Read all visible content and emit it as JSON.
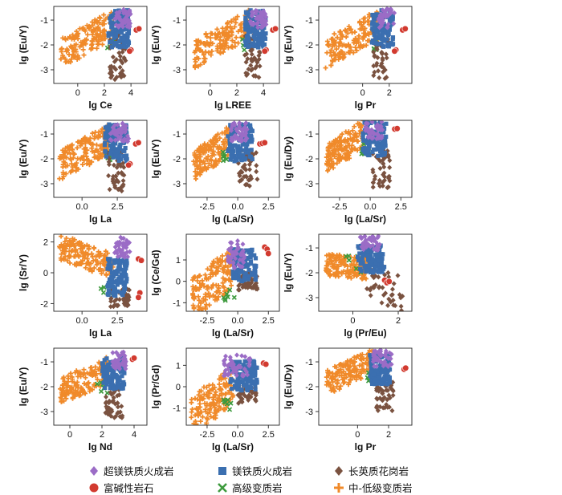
{
  "chart_data": [
    {
      "type": "scatter",
      "xlabel": "lg Ce",
      "ylabel": "lg (Eu/Y)",
      "xticks": [
        "0",
        "2",
        "4"
      ],
      "xtick_values": [
        0,
        2,
        4
      ],
      "yticks": [
        "-1",
        "-2",
        "-3"
      ],
      "ytick_values": [
        -1,
        -2,
        -3
      ],
      "xlim": [
        -1.8,
        5.2
      ],
      "ylim": [
        -3.55,
        -0.45
      ],
      "clusters": {
        "orange": {
          "x": [
            -1.3,
            2.8
          ],
          "y": [
            -2.35,
            -1.15
          ],
          "slope": 0.3
        },
        "blue": {
          "x": [
            2.3,
            3.9
          ],
          "y": [
            -2.1,
            -0.6
          ]
        },
        "purple": {
          "x": [
            2.8,
            4.0
          ],
          "y": [
            -1.3,
            -0.55
          ]
        },
        "brown": {
          "x": [
            2.4,
            3.6
          ],
          "y": [
            -3.4,
            -1.5
          ]
        },
        "green": {
          "x": [
            2.2,
            2.9
          ],
          "y": [
            -2.2,
            -1.7
          ]
        },
        "red": [
          [
            4.4,
            -1.4
          ],
          [
            4.6,
            -1.35
          ],
          [
            4.0,
            -2.2
          ],
          [
            3.9,
            -2.25
          ]
        ]
      }
    },
    {
      "type": "scatter",
      "xlabel": "lg LREE",
      "ylabel": "lg (Eu/Y)",
      "xticks": [
        "0",
        "2",
        "4"
      ],
      "xtick_values": [
        0,
        2,
        4
      ],
      "yticks": [
        "-1",
        "-2",
        "-3"
      ],
      "ytick_values": [
        -1,
        -2,
        -3
      ],
      "xlim": [
        -1.8,
        5.2
      ],
      "ylim": [
        -3.55,
        -0.45
      ],
      "clusters": {
        "orange": {
          "x": [
            -1.2,
            3.0
          ],
          "y": [
            -2.35,
            -1.15
          ],
          "slope": 0.3
        },
        "blue": {
          "x": [
            2.6,
            4.2
          ],
          "y": [
            -2.1,
            -0.6
          ]
        },
        "purple": {
          "x": [
            3.0,
            4.2
          ],
          "y": [
            -1.3,
            -0.55
          ]
        },
        "brown": {
          "x": [
            2.6,
            3.8
          ],
          "y": [
            -3.4,
            -1.5
          ]
        },
        "green": {
          "x": [
            2.4,
            3.1
          ],
          "y": [
            -2.2,
            -1.7
          ]
        },
        "red": [
          [
            4.7,
            -1.4
          ],
          [
            4.9,
            -1.35
          ],
          [
            4.2,
            -2.2
          ],
          [
            4.1,
            -2.25
          ]
        ]
      }
    },
    {
      "type": "scatter",
      "xlabel": "lg Pr",
      "ylabel": "lg (Eu/Y)",
      "xticks": [
        "0",
        "2"
      ],
      "xtick_values": [
        0,
        2
      ],
      "yticks": [
        "-1",
        "-2",
        "-3"
      ],
      "ytick_values": [
        -1,
        -2,
        -3
      ],
      "xlim": [
        -3.3,
        3.7
      ],
      "ylim": [
        -3.55,
        -0.45
      ],
      "clusters": {
        "orange": {
          "x": [
            -2.8,
            1.2
          ],
          "y": [
            -2.35,
            -1.15
          ],
          "slope": 0.3
        },
        "blue": {
          "x": [
            0.7,
            2.3
          ],
          "y": [
            -2.1,
            -0.6
          ]
        },
        "purple": {
          "x": [
            1.2,
            2.4
          ],
          "y": [
            -1.3,
            -0.55
          ]
        },
        "brown": {
          "x": [
            0.8,
            2.0
          ],
          "y": [
            -3.4,
            -1.5
          ]
        },
        "green": {
          "x": [
            0.6,
            1.3
          ],
          "y": [
            -2.2,
            -1.7
          ]
        },
        "red": [
          [
            3.0,
            -1.4
          ],
          [
            3.2,
            -1.35
          ],
          [
            2.5,
            -2.2
          ],
          [
            2.4,
            -2.25
          ]
        ]
      }
    },
    {
      "type": "scatter",
      "xlabel": "lg La",
      "ylabel": "lg (Eu/Y)",
      "xticks": [
        "0.0",
        "2.5"
      ],
      "xtick_values": [
        0,
        2.5
      ],
      "yticks": [
        "-1",
        "-2",
        "-3"
      ],
      "ytick_values": [
        -1,
        -2,
        -3
      ],
      "xlim": [
        -2.0,
        4.6
      ],
      "ylim": [
        -3.55,
        -0.45
      ],
      "clusters": {
        "orange": {
          "x": [
            -1.6,
            1.9
          ],
          "y": [
            -2.35,
            -1.15
          ],
          "slope": 0.3
        },
        "blue": {
          "x": [
            1.6,
            3.2
          ],
          "y": [
            -2.1,
            -0.6
          ]
        },
        "purple": {
          "x": [
            2.0,
            3.3
          ],
          "y": [
            -1.3,
            -0.55
          ]
        },
        "brown": {
          "x": [
            1.8,
            3.0
          ],
          "y": [
            -3.4,
            -1.5
          ]
        },
        "green": {
          "x": [
            1.4,
            2.1
          ],
          "y": [
            -2.2,
            -1.7
          ]
        },
        "red": [
          [
            3.8,
            -1.4
          ],
          [
            4.0,
            -1.35
          ],
          [
            3.4,
            -2.2
          ],
          [
            3.3,
            -2.25
          ]
        ]
      }
    },
    {
      "type": "scatter",
      "xlabel": "lg (La/Sr)",
      "ylabel": "lg (Eu/Y)",
      "xticks": [
        "-2.5",
        "0.0",
        "2.5"
      ],
      "xtick_values": [
        -2.5,
        0,
        2.5
      ],
      "yticks": [
        "-1",
        "-2",
        "-3"
      ],
      "ytick_values": [
        -1,
        -2,
        -3
      ],
      "xlim": [
        -4.2,
        3.4
      ],
      "ylim": [
        -3.55,
        -0.45
      ],
      "clusters": {
        "orange": {
          "x": [
            -3.6,
            -0.5
          ],
          "y": [
            -2.35,
            -1.15
          ],
          "slope": 0.35
        },
        "blue": {
          "x": [
            -0.8,
            1.2
          ],
          "y": [
            -2.1,
            -0.6
          ]
        },
        "purple": {
          "x": [
            -0.6,
            0.8
          ],
          "y": [
            -1.3,
            -0.55
          ]
        },
        "brown": {
          "x": [
            0.0,
            1.6
          ],
          "y": [
            -3.1,
            -1.6
          ]
        },
        "green": {
          "x": [
            -1.3,
            -0.5
          ],
          "y": [
            -2.2,
            -1.7
          ]
        },
        "red": [
          [
            1.8,
            -1.4
          ],
          [
            2.0,
            -1.38
          ],
          [
            2.2,
            -1.35
          ]
        ]
      }
    },
    {
      "type": "scatter",
      "xlabel": "lg (La/Sr)",
      "ylabel": "lg (Eu/Dy)",
      "xticks": [
        "-2.5",
        "0.0",
        "2.5"
      ],
      "xtick_values": [
        -2.5,
        0,
        2.5
      ],
      "yticks": [
        "-1",
        "-2",
        "-3"
      ],
      "ytick_values": [
        -1,
        -2,
        -3
      ],
      "xlim": [
        -4.2,
        3.4
      ],
      "ylim": [
        -3.55,
        -0.45
      ],
      "clusters": {
        "orange": {
          "x": [
            -3.6,
            -0.5
          ],
          "y": [
            -2.1,
            -0.9
          ],
          "slope": 0.35
        },
        "blue": {
          "x": [
            -0.6,
            1.3
          ],
          "y": [
            -1.9,
            -0.5
          ]
        },
        "purple": {
          "x": [
            -0.4,
            1.0
          ],
          "y": [
            -1.2,
            -0.5
          ]
        },
        "brown": {
          "x": [
            0.2,
            1.6
          ],
          "y": [
            -3.2,
            -1.6
          ]
        },
        "green": {
          "x": [
            -0.8,
            0.2
          ],
          "y": [
            -1.8,
            -1.4
          ]
        },
        "red": [
          [
            2.0,
            -0.8
          ],
          [
            2.2,
            -0.78
          ]
        ]
      }
    },
    {
      "type": "scatter",
      "xlabel": "lg La",
      "ylabel": "lg (Sr/Y)",
      "xticks": [
        "0.0",
        "2.5"
      ],
      "xtick_values": [
        0,
        2.5
      ],
      "yticks": [
        "2",
        "0",
        "-2"
      ],
      "ytick_values": [
        2,
        0,
        -2
      ],
      "xlim": [
        -2.0,
        4.6
      ],
      "ylim": [
        -2.5,
        2.5
      ],
      "clusters": {
        "orange": {
          "x": [
            -1.6,
            2.2
          ],
          "y": [
            0.2,
            1.9
          ],
          "slope": -0.35
        },
        "blue": {
          "x": [
            1.8,
            3.2
          ],
          "y": [
            -1.5,
            0.9
          ]
        },
        "purple": {
          "x": [
            2.3,
            3.4
          ],
          "y": [
            1.0,
            2.3
          ]
        },
        "brown": {
          "x": [
            2.0,
            3.4
          ],
          "y": [
            -2.2,
            -1.0
          ]
        },
        "green": {
          "x": [
            1.3,
            2.2
          ],
          "y": [
            -1.4,
            -0.6
          ]
        },
        "red": [
          [
            4.0,
            0.9
          ],
          [
            4.2,
            0.8
          ],
          [
            4.1,
            -1.3
          ],
          [
            4.0,
            -1.6
          ]
        ]
      }
    },
    {
      "type": "scatter",
      "xlabel": "lg (La/Sr)",
      "ylabel": "lg (Ce/Gd)",
      "xticks": [
        "-2.5",
        "0.0",
        "2.5"
      ],
      "xtick_values": [
        -2.5,
        0,
        2.5
      ],
      "yticks": [
        "1",
        "0",
        "-1"
      ],
      "ytick_values": [
        1,
        0,
        -1
      ],
      "xlim": [
        -4.2,
        3.4
      ],
      "ylim": [
        -1.4,
        2.2
      ],
      "clusters": {
        "orange": {
          "x": [
            -3.7,
            -0.4
          ],
          "y": [
            -1.1,
            0.9
          ],
          "slope": 0.45
        },
        "blue": {
          "x": [
            -0.4,
            1.5
          ],
          "y": [
            0.0,
            1.5
          ]
        },
        "purple": {
          "x": [
            -0.8,
            0.6
          ],
          "y": [
            0.6,
            1.9
          ]
        },
        "brown": {
          "x": [
            0.0,
            1.6
          ],
          "y": [
            -0.4,
            0.4
          ]
        },
        "green": {
          "x": [
            -1.2,
            -0.2
          ],
          "y": [
            -0.9,
            -0.4
          ]
        },
        "red": [
          [
            2.2,
            1.6
          ],
          [
            2.4,
            1.5
          ],
          [
            2.5,
            1.3
          ]
        ]
      }
    },
    {
      "type": "scatter",
      "xlabel": "lg (Pr/Eu)",
      "ylabel": "lg (Eu/Y)",
      "xticks": [
        "0",
        "2"
      ],
      "xtick_values": [
        0,
        2
      ],
      "yticks": [
        "-1",
        "-2",
        "-3"
      ],
      "ytick_values": [
        -1,
        -2,
        -3
      ],
      "xlim": [
        -1.5,
        2.6
      ],
      "ylim": [
        -3.55,
        -0.45
      ],
      "clusters": {
        "orange": {
          "x": [
            -1.2,
            0.6
          ],
          "y": [
            -2.2,
            -1.3
          ],
          "slope": -0.1
        },
        "blue": {
          "x": [
            0.2,
            1.4
          ],
          "y": [
            -2.0,
            -0.9
          ]
        },
        "purple": {
          "x": [
            0.3,
            1.2
          ],
          "y": [
            -1.1,
            -0.5
          ]
        },
        "brown": {
          "x": [
            0.6,
            2.2
          ],
          "y": [
            -3.3,
            -1.7
          ],
          "slope": -0.6
        },
        "green": {
          "x": [
            -0.3,
            0.4
          ],
          "y": [
            -2.0,
            -1.3
          ]
        },
        "red": [
          [
            1.4,
            -2.3
          ],
          [
            1.5,
            -2.4
          ],
          [
            1.6,
            -2.35
          ]
        ]
      }
    },
    {
      "type": "scatter",
      "xlabel": "lg Nd",
      "ylabel": "lg (Eu/Y)",
      "xticks": [
        "0",
        "2",
        "4"
      ],
      "xtick_values": [
        0,
        2,
        4
      ],
      "yticks": [
        "-1",
        "-2",
        "-3"
      ],
      "ytick_values": [
        -1,
        -2,
        -3
      ],
      "xlim": [
        -1.0,
        4.8
      ],
      "ylim": [
        -3.55,
        -0.45
      ],
      "clusters": {
        "orange": {
          "x": [
            -0.6,
            2.4
          ],
          "y": [
            -2.3,
            -1.2
          ],
          "slope": 0.3
        },
        "blue": {
          "x": [
            2.0,
            3.4
          ],
          "y": [
            -2.1,
            -0.8
          ]
        },
        "purple": {
          "x": [
            2.6,
            3.5
          ],
          "y": [
            -1.3,
            -0.6
          ]
        },
        "brown": {
          "x": [
            2.2,
            3.3
          ],
          "y": [
            -3.3,
            -2.0
          ]
        },
        "green": {
          "x": [
            1.7,
            2.4
          ],
          "y": [
            -2.3,
            -1.8
          ]
        },
        "red": [
          [
            3.9,
            -0.9
          ],
          [
            4.0,
            -0.85
          ]
        ]
      }
    },
    {
      "type": "scatter",
      "xlabel": "lg (La/Sr)",
      "ylabel": "lg (Pr/Gd)",
      "xticks": [
        "-2.5",
        "0.0",
        "2.5"
      ],
      "xtick_values": [
        -2.5,
        0,
        2.5
      ],
      "yticks": [
        "1",
        "0",
        "-1"
      ],
      "ytick_values": [
        1,
        0,
        -1
      ],
      "xlim": [
        -4.2,
        3.4
      ],
      "ylim": [
        -1.8,
        1.8
      ],
      "clusters": {
        "orange": {
          "x": [
            -3.8,
            -0.3
          ],
          "y": [
            -1.6,
            0.3
          ],
          "slope": 0.45
        },
        "blue": {
          "x": [
            -0.6,
            1.6
          ],
          "y": [
            -0.2,
            1.2
          ]
        },
        "purple": {
          "x": [
            -1.2,
            1.0
          ],
          "y": [
            0.5,
            1.5
          ]
        },
        "brown": {
          "x": [
            0.0,
            1.5
          ],
          "y": [
            -0.8,
            0.1
          ]
        },
        "green": {
          "x": [
            -1.2,
            -0.2
          ],
          "y": [
            -1.1,
            -0.6
          ]
        },
        "red": [
          [
            2.1,
            1.1
          ],
          [
            2.3,
            1.05
          ]
        ]
      }
    },
    {
      "type": "scatter",
      "xlabel": "lg Pr",
      "ylabel": "lg (Eu/Dy)",
      "xticks": [
        "0",
        "2"
      ],
      "xtick_values": [
        0,
        2
      ],
      "yticks": [
        "-1",
        "-2",
        "-3"
      ],
      "ytick_values": [
        -1,
        -2,
        -3
      ],
      "xlim": [
        -2.5,
        3.5
      ],
      "ylim": [
        -3.55,
        -0.45
      ],
      "clusters": {
        "orange": {
          "x": [
            -2.0,
            1.0
          ],
          "y": [
            -1.9,
            -0.9
          ],
          "slope": 0.3
        },
        "blue": {
          "x": [
            0.8,
            2.1
          ],
          "y": [
            -1.9,
            -0.7
          ]
        },
        "purple": {
          "x": [
            1.0,
            2.2
          ],
          "y": [
            -1.2,
            -0.5
          ]
        },
        "brown": {
          "x": [
            1.2,
            2.3
          ],
          "y": [
            -3.0,
            -1.8
          ]
        },
        "green": {
          "x": [
            0.6,
            1.2
          ],
          "y": [
            -1.8,
            -1.4
          ]
        },
        "red": [
          [
            3.0,
            -1.3
          ],
          [
            3.1,
            -1.25
          ]
        ]
      }
    }
  ],
  "legend": {
    "items": [
      {
        "label": "超镁铁质火成岩",
        "marker": "diamond",
        "color": "#9b6cc6"
      },
      {
        "label": "镁铁质火成岩",
        "marker": "square",
        "color": "#3b6fb0"
      },
      {
        "label": "长英质花岗岩",
        "marker": "diamond",
        "color": "#7a5240"
      },
      {
        "label": "富碱性岩石",
        "marker": "circle",
        "color": "#d23a2f"
      },
      {
        "label": "高级变质岩",
        "marker": "x",
        "color": "#3d9a3d"
      },
      {
        "label": "中-低级变质岩",
        "marker": "plus",
        "color": "#f08a2a"
      }
    ]
  },
  "colors": {
    "purple": "#9b6cc6",
    "blue": "#3b6fb0",
    "brown": "#7a5240",
    "red": "#d23a2f",
    "green": "#3d9a3d",
    "orange": "#f08a2a"
  }
}
